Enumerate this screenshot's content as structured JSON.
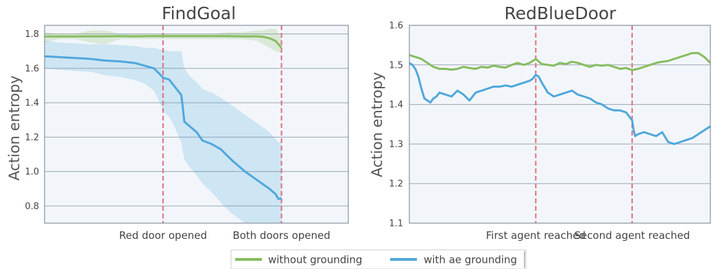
{
  "chart_data": [
    {
      "type": "line",
      "title": "FindGoal",
      "ylabel": "Action entropy",
      "xlabel": "",
      "ylim": [
        0.7,
        1.85
      ],
      "yticks": [
        0.8,
        1.0,
        1.2,
        1.4,
        1.6,
        1.8
      ],
      "ytick_labels": [
        "0.8",
        "1.0",
        "1.2",
        "1.4",
        "1.6",
        "1.8"
      ],
      "xlim": [
        0,
        100
      ],
      "grid": true,
      "events": [
        {
          "x": 39,
          "label": "Red door opened",
          "color": "#e06b7f"
        },
        {
          "x": 78,
          "label": "Both doors opened",
          "color": "#e06b7f"
        }
      ],
      "series": [
        {
          "name": "without grounding",
          "color": "#86bc5f",
          "x": [
            0,
            5,
            10,
            15,
            20,
            25,
            30,
            35,
            39,
            45,
            50,
            55,
            60,
            65,
            70,
            72,
            74,
            76,
            78
          ],
          "y": [
            1.785,
            1.785,
            1.785,
            1.786,
            1.786,
            1.787,
            1.786,
            1.787,
            1.787,
            1.787,
            1.787,
            1.787,
            1.787,
            1.786,
            1.786,
            1.783,
            1.775,
            1.76,
            1.72
          ],
          "band_low": [
            1.75,
            1.77,
            1.77,
            1.75,
            1.74,
            1.77,
            1.77,
            1.77,
            1.77,
            1.77,
            1.77,
            1.77,
            1.77,
            1.77,
            1.76,
            1.74,
            1.72,
            1.7,
            1.69
          ],
          "band_high": [
            1.81,
            1.8,
            1.8,
            1.82,
            1.82,
            1.8,
            1.8,
            1.8,
            1.8,
            1.8,
            1.8,
            1.8,
            1.81,
            1.81,
            1.82,
            1.82,
            1.83,
            1.83,
            1.78
          ]
        },
        {
          "name": "with ae grounding",
          "color": "#4fa7dc",
          "x": [
            0,
            5,
            10,
            15,
            20,
            25,
            30,
            33,
            36,
            38,
            39,
            41,
            43,
            45,
            45.5,
            46,
            48,
            50,
            52,
            55,
            58,
            62,
            66,
            70,
            74,
            76,
            77,
            78
          ],
          "y": [
            1.67,
            1.665,
            1.66,
            1.655,
            1.645,
            1.64,
            1.63,
            1.615,
            1.6,
            1.565,
            1.545,
            1.535,
            1.49,
            1.445,
            1.375,
            1.29,
            1.26,
            1.23,
            1.18,
            1.16,
            1.13,
            1.06,
            1.0,
            0.95,
            0.9,
            0.87,
            0.84,
            0.845
          ],
          "band_low": [
            1.6,
            1.59,
            1.585,
            1.58,
            1.56,
            1.55,
            1.53,
            1.51,
            1.47,
            1.4,
            1.35,
            1.32,
            1.25,
            1.17,
            1.12,
            1.07,
            1.02,
            0.98,
            0.93,
            0.88,
            0.82,
            0.75,
            0.7,
            0.7,
            0.7,
            0.7,
            0.7,
            0.7
          ],
          "band_high": [
            1.76,
            1.75,
            1.745,
            1.74,
            1.74,
            1.735,
            1.73,
            1.72,
            1.72,
            1.71,
            1.71,
            1.7,
            1.7,
            1.7,
            1.65,
            1.6,
            1.55,
            1.52,
            1.48,
            1.46,
            1.43,
            1.38,
            1.33,
            1.28,
            1.23,
            1.19,
            1.17,
            1.17
          ]
        }
      ]
    },
    {
      "type": "line",
      "title": "RedBlueDoor",
      "ylabel": "Action entropy",
      "xlabel": "",
      "ylim": [
        1.1,
        1.6
      ],
      "yticks": [
        1.1,
        1.2,
        1.3,
        1.4,
        1.5,
        1.6
      ],
      "ytick_labels": [
        "1.1",
        "1.2",
        "1.3",
        "1.4",
        "1.5",
        "1.6"
      ],
      "xlim": [
        0,
        100
      ],
      "grid": true,
      "events": [
        {
          "x": 42,
          "label": "First agent reached",
          "color": "#e06b7f"
        },
        {
          "x": 74,
          "label": "Second agent reached",
          "color": "#e06b7f"
        }
      ],
      "series": [
        {
          "name": "without grounding",
          "color": "#86bc5f",
          "x": [
            0,
            2,
            4,
            6,
            8,
            10,
            12,
            14,
            16,
            18,
            20,
            22,
            24,
            26,
            28,
            30,
            32,
            34,
            36,
            38,
            40,
            42,
            44,
            46,
            48,
            50,
            52,
            54,
            56,
            58,
            60,
            62,
            64,
            66,
            68,
            70,
            72,
            74,
            76,
            78,
            80,
            82,
            84,
            86,
            88,
            90,
            92,
            94,
            96,
            98,
            100
          ],
          "y": [
            1.525,
            1.52,
            1.515,
            1.505,
            1.495,
            1.49,
            1.49,
            1.488,
            1.49,
            1.495,
            1.492,
            1.49,
            1.495,
            1.493,
            1.498,
            1.495,
            1.493,
            1.5,
            1.505,
            1.5,
            1.505,
            1.515,
            1.502,
            1.5,
            1.498,
            1.505,
            1.502,
            1.508,
            1.505,
            1.5,
            1.495,
            1.5,
            1.498,
            1.5,
            1.495,
            1.49,
            1.492,
            1.487,
            1.49,
            1.495,
            1.5,
            1.505,
            1.508,
            1.51,
            1.515,
            1.52,
            1.525,
            1.53,
            1.53,
            1.52,
            1.505
          ]
        },
        {
          "name": "with ae grounding",
          "color": "#4fa7dc",
          "x": [
            0,
            1,
            2,
            3,
            4,
            5,
            6,
            7,
            8,
            9,
            10,
            12,
            14,
            16,
            18,
            20,
            22,
            24,
            26,
            28,
            30,
            32,
            34,
            36,
            38,
            40,
            41,
            42,
            43,
            44,
            46,
            48,
            50,
            52,
            54,
            56,
            58,
            60,
            62,
            64,
            66,
            68,
            70,
            72,
            73,
            74,
            74.5,
            75,
            76,
            78,
            80,
            82,
            84,
            86,
            88,
            90,
            92,
            94,
            96,
            98,
            100
          ],
          "y": [
            1.505,
            1.5,
            1.49,
            1.47,
            1.44,
            1.415,
            1.41,
            1.405,
            1.415,
            1.42,
            1.43,
            1.425,
            1.42,
            1.435,
            1.425,
            1.41,
            1.43,
            1.435,
            1.44,
            1.445,
            1.445,
            1.448,
            1.445,
            1.45,
            1.455,
            1.46,
            1.465,
            1.475,
            1.47,
            1.455,
            1.43,
            1.42,
            1.425,
            1.43,
            1.435,
            1.425,
            1.42,
            1.415,
            1.405,
            1.4,
            1.39,
            1.385,
            1.385,
            1.38,
            1.37,
            1.36,
            1.335,
            1.32,
            1.325,
            1.33,
            1.325,
            1.32,
            1.33,
            1.305,
            1.3,
            1.305,
            1.31,
            1.315,
            1.325,
            1.335,
            1.345
          ]
        }
      ]
    }
  ],
  "legend": {
    "items": [
      {
        "label": "without grounding",
        "color": "#86bc5f"
      },
      {
        "label": "with ae grounding",
        "color": "#4fa7dc"
      }
    ]
  }
}
